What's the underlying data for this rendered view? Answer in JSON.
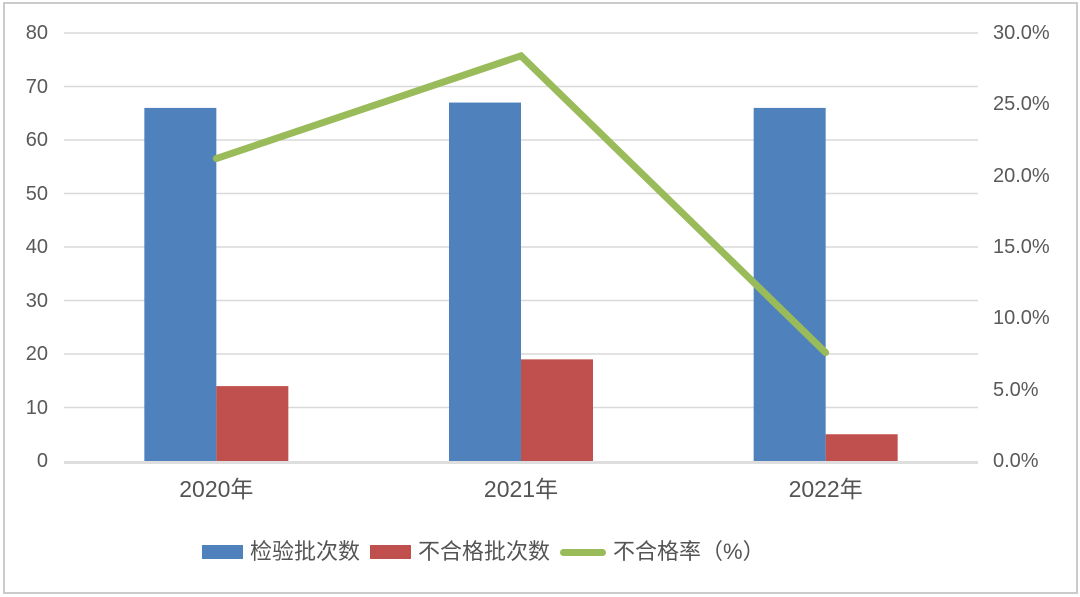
{
  "window": {
    "background": "#ffffff",
    "border_color": "#cbcbcb"
  },
  "chart_data": {
    "type": "bar+line",
    "title": "",
    "categories": [
      "2020年",
      "2021年",
      "2022年"
    ],
    "series": [
      {
        "name": "检验批次数",
        "type": "bar",
        "axis": "left",
        "color": "#4F81BD",
        "values": [
          66,
          67,
          66
        ]
      },
      {
        "name": "不合格批次数",
        "type": "bar",
        "axis": "left",
        "color": "#C0504D",
        "values": [
          14,
          19,
          5
        ]
      },
      {
        "name": "不合格率（%）",
        "type": "line",
        "axis": "right",
        "color": "#9ABB59",
        "values": [
          21.2,
          28.4,
          7.6
        ]
      }
    ],
    "left_axis": {
      "min": 0,
      "max": 80,
      "step": 10,
      "tick_labels": [
        "80",
        "70",
        "60",
        "50",
        "40",
        "30",
        "20",
        "10",
        "0"
      ]
    },
    "right_axis": {
      "min": 0,
      "max": 30,
      "step": 5,
      "tick_labels": [
        "30.0%",
        "25.0%",
        "20.0%",
        "15.0%",
        "10.0%",
        "5.0%",
        "0.0%"
      ]
    },
    "grid": true,
    "legend_position": "bottom",
    "colors": {
      "gridline": "#D9D9D9",
      "baseline": "#DEDEDE",
      "tick_text": "#595959"
    }
  }
}
